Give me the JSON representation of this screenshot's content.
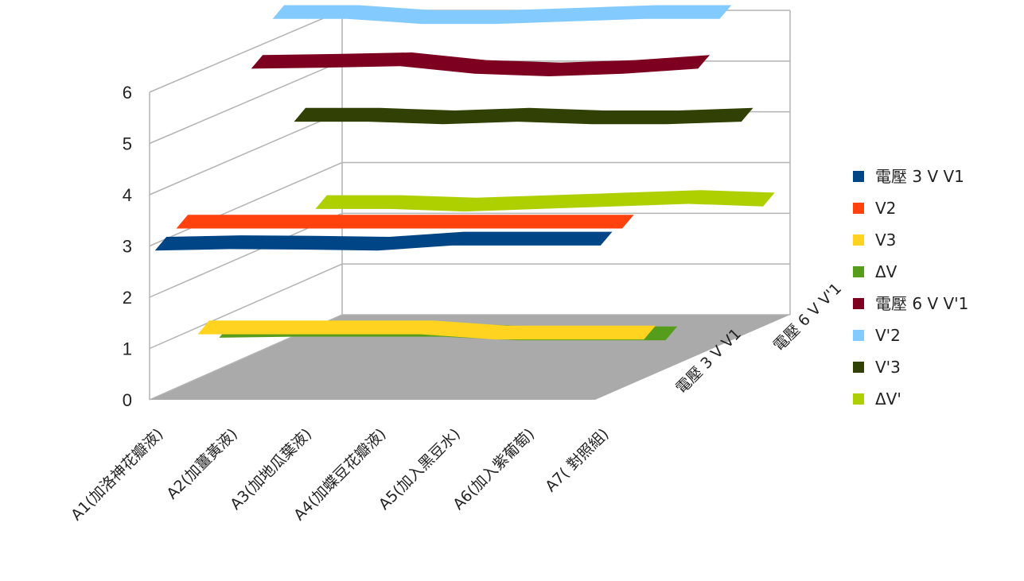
{
  "chart_data": {
    "type": "line",
    "variant": "3d-ribbon",
    "title": "",
    "xlabel": "",
    "ylabel": "",
    "ylim": [
      0,
      6
    ],
    "yticks": [
      "0",
      "1",
      "2",
      "3",
      "4",
      "5",
      "6"
    ],
    "grid": true,
    "legend_position": "right",
    "categories": [
      "A1(加洛神花瓣液)",
      "A2(加薑黃液)",
      "A3(加地瓜葉液)",
      "A4(加蝶豆花瓣液)",
      "A5(加入黑豆水)",
      "A6(加入紫葡萄)",
      "A7( 對照組)"
    ],
    "depth_categories": [
      "電壓 3 V V1",
      "電壓 6 V V'1"
    ],
    "series": [
      {
        "name": "電壓 3 V V1",
        "depth": 0,
        "color": "#004586",
        "values": [
          2.95,
          2.98,
          2.97,
          2.95,
          3.05,
          3.05,
          3.05
        ]
      },
      {
        "name": "V2",
        "depth": 0,
        "color": "#ff420e",
        "values": [
          3.2,
          3.2,
          3.2,
          3.2,
          3.2,
          3.2,
          3.2
        ]
      },
      {
        "name": "V3",
        "depth": 0,
        "color": "#ffd320",
        "values": [
          0.95,
          0.95,
          0.95,
          0.95,
          0.85,
          0.85,
          0.85
        ]
      },
      {
        "name": "ΔV",
        "depth": 0,
        "color": "#579d1c",
        "values": [
          0.7,
          0.72,
          0.72,
          0.72,
          0.65,
          0.65,
          0.65
        ]
      },
      {
        "name": "電壓 6 V V'1",
        "depth": 1,
        "color": "#7e0021",
        "values": [
          5.7,
          5.72,
          5.75,
          5.6,
          5.55,
          5.6,
          5.7
        ]
      },
      {
        "name": "V'2",
        "depth": 1,
        "color": "#83caff",
        "values": [
          6.5,
          6.5,
          6.4,
          6.4,
          6.45,
          6.5,
          6.5
        ]
      },
      {
        "name": "V'3",
        "depth": 1,
        "color": "#314004",
        "values": [
          4.3,
          4.3,
          4.25,
          4.3,
          4.25,
          4.25,
          4.3
        ]
      },
      {
        "name": "ΔV'",
        "depth": 1,
        "color": "#aecf00",
        "values": [
          2.4,
          2.4,
          2.35,
          2.4,
          2.45,
          2.5,
          2.45
        ]
      }
    ]
  }
}
